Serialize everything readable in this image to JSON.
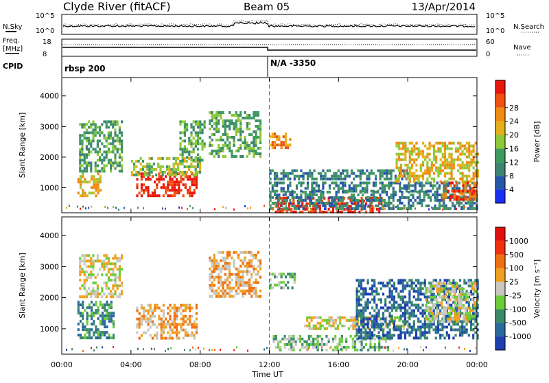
{
  "header": {
    "station": "Clyde River (fitACF)",
    "beam": "Beam 05",
    "date": "13/Apr/2014"
  },
  "noise_panel": {
    "left_label": "N.Sky",
    "right_label": "N.Search",
    "ticks": [
      "10^5",
      "10^0"
    ]
  },
  "freq_panel": {
    "left_label_1": "Freq.",
    "left_label_2": "[MHz]",
    "left_ticks": [
      "18",
      "8"
    ],
    "right_label": "Nave",
    "right_ticks": [
      "60",
      "0"
    ]
  },
  "cpid_panel": {
    "label": "CPID",
    "segments": [
      "rbsp 200",
      "N/A -3350"
    ]
  },
  "chart_data": [
    {
      "type": "heatmap",
      "title": "",
      "xlabel": "Time UT",
      "ylabel": "Slant Range [km]",
      "x_ticks": [
        "00:00",
        "04:00",
        "08:00",
        "12:00",
        "16:00",
        "20:00",
        "00:00"
      ],
      "y_ticks": [
        1000,
        2000,
        3000,
        4000
      ],
      "ylim": [
        180,
        4600
      ],
      "xlim_hours": [
        0,
        24
      ],
      "colorbar": {
        "label": "Power [dB]",
        "ticks": [
          "4",
          "8",
          "12",
          "16",
          "20",
          "24",
          "28"
        ],
        "colors": [
          "#1b2ff0",
          "#2857a8",
          "#3e8470",
          "#3f9a60",
          "#8fc93a",
          "#e5b01c",
          "#f08a10",
          "#f05010",
          "#e8160c"
        ]
      },
      "regions": [
        {
          "t0": 0.9,
          "t1": 2.2,
          "r0": 700,
          "r1": 1500,
          "level": 5
        },
        {
          "t0": 1.0,
          "t1": 3.5,
          "r0": 1500,
          "r1": 3200,
          "level": 3
        },
        {
          "t0": 4.3,
          "t1": 7.8,
          "r0": 700,
          "r1": 1500,
          "level": 8
        },
        {
          "t0": 4.0,
          "t1": 8.0,
          "r0": 1400,
          "r1": 2000,
          "level": 4
        },
        {
          "t0": 6.8,
          "t1": 8.3,
          "r0": 1900,
          "r1": 3200,
          "level": 3
        },
        {
          "t0": 8.5,
          "t1": 11.5,
          "r0": 2000,
          "r1": 3500,
          "level": 3
        },
        {
          "t0": 12.0,
          "t1": 13.2,
          "r0": 2300,
          "r1": 2800,
          "level": 6
        },
        {
          "t0": 12.2,
          "t1": 18.5,
          "r0": 250,
          "r1": 700,
          "level": 8
        },
        {
          "t0": 12.0,
          "t1": 20.0,
          "r0": 1300,
          "r1": 1600,
          "level": 2
        },
        {
          "t0": 12.0,
          "t1": 24.0,
          "r0": 900,
          "r1": 1200,
          "level": 2
        },
        {
          "t0": 12.0,
          "t1": 24.0,
          "r0": 300,
          "r1": 900,
          "level": 2
        },
        {
          "t0": 19.3,
          "t1": 24.0,
          "r0": 1200,
          "r1": 2500,
          "level": 5
        },
        {
          "t0": 22.0,
          "t1": 24.0,
          "r0": 600,
          "r1": 1200,
          "level": 7
        }
      ]
    },
    {
      "type": "heatmap",
      "title": "",
      "xlabel": "Time UT",
      "ylabel": "Slant Range [km]",
      "x_ticks": [
        "00:00",
        "04:00",
        "08:00",
        "12:00",
        "16:00",
        "20:00",
        "00:00"
      ],
      "y_ticks": [
        1000,
        2000,
        3000,
        4000
      ],
      "ylim": [
        180,
        4600
      ],
      "xlim_hours": [
        0,
        24
      ],
      "colorbar": {
        "label": "Velocity [m s⁻¹]",
        "ticks": [
          "1000",
          "500",
          "100",
          "25",
          "-25",
          "-100",
          "-500",
          "-1000"
        ],
        "colors": [
          "#1d3fb0",
          "#2a6a9a",
          "#3a8a6a",
          "#6ccc3a",
          "#c8c8c0",
          "#f0a020",
          "#f07010",
          "#f03010",
          "#e0100c"
        ]
      },
      "regions": [
        {
          "t0": 0.9,
          "t1": 3.0,
          "r0": 700,
          "r1": 1900,
          "level": 2
        },
        {
          "t0": 1.0,
          "t1": 3.5,
          "r0": 2000,
          "r1": 3400,
          "level": 4
        },
        {
          "t0": 4.3,
          "t1": 7.8,
          "r0": 700,
          "r1": 1800,
          "level": 5
        },
        {
          "t0": 8.5,
          "t1": 11.5,
          "r0": 2000,
          "r1": 3500,
          "level": 5
        },
        {
          "t0": 12.0,
          "t1": 13.5,
          "r0": 2300,
          "r1": 2800,
          "level": 3
        },
        {
          "t0": 12.2,
          "t1": 19.0,
          "r0": 300,
          "r1": 800,
          "level": 3
        },
        {
          "t0": 14.0,
          "t1": 20.0,
          "r0": 1000,
          "r1": 1400,
          "level": 4
        },
        {
          "t0": 17.0,
          "t1": 24.0,
          "r0": 700,
          "r1": 2600,
          "level": 1
        },
        {
          "t0": 21.0,
          "t1": 24.0,
          "r0": 1200,
          "r1": 2500,
          "level": 4
        }
      ]
    }
  ]
}
